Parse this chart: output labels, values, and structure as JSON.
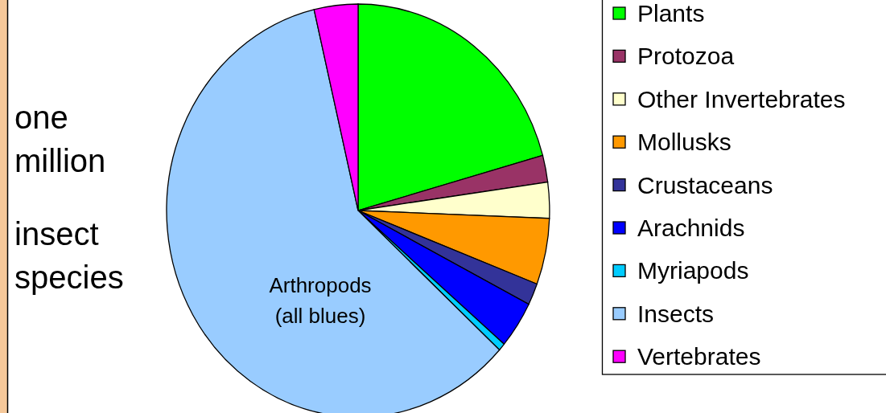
{
  "chart_data": {
    "type": "pie",
    "categories": [
      "Plants",
      "Protozoa",
      "Other Invertebrates",
      "Mollusks",
      "Crustaceans",
      "Arachnids",
      "Myriapods",
      "Insects",
      "Vertebrates"
    ],
    "values": [
      20.7,
      2.1,
      2.8,
      5.2,
      1.7,
      3.7,
      0.6,
      59.5,
      3.7
    ],
    "colors": [
      "#00ff00",
      "#993366",
      "#ffffcc",
      "#ff9900",
      "#333399",
      "#0000ff",
      "#00ccff",
      "#99ccff",
      "#ff00ff"
    ],
    "annotations": [
      "one million",
      "insect species",
      "Arthropods (all blues)"
    ],
    "legend": "right"
  }
}
